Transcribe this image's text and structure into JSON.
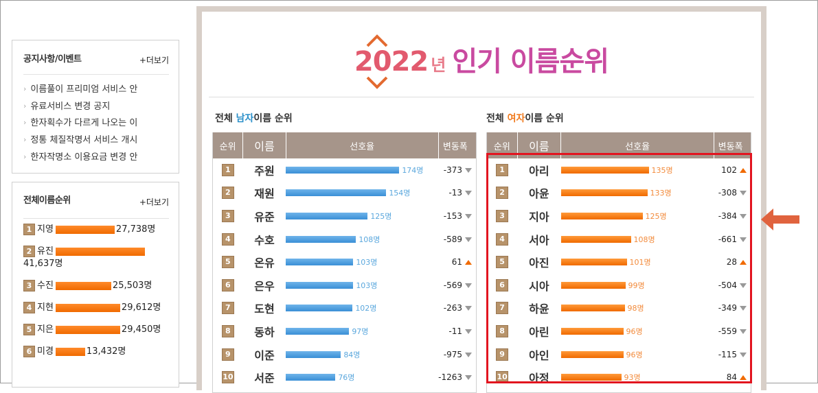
{
  "notice": {
    "title": "공지사항/이벤트",
    "more": "+더보기",
    "items": [
      "이름풀이 프리미엄 서비스 안",
      "유료서비스 변경 공지",
      "한자획수가 다르게 나오는 이",
      "정통 체질작명서 서비스 개시",
      "한자작명소 이용요금 변경 안"
    ]
  },
  "all_ranking": {
    "title": "전체이름순위",
    "more": "+더보기",
    "items": [
      {
        "rank": "1",
        "name": "지영",
        "count": "27,738명",
        "bar": 0.48
      },
      {
        "rank": "2",
        "name": "유진",
        "count": "41,637명",
        "bar": 0.72
      },
      {
        "rank": "3",
        "name": "수진",
        "count": "25,503명",
        "bar": 0.45
      },
      {
        "rank": "4",
        "name": "지현",
        "count": "29,612명",
        "bar": 0.52
      },
      {
        "rank": "5",
        "name": "지은",
        "count": "29,450명",
        "bar": 0.52
      },
      {
        "rank": "6",
        "name": "미경",
        "count": "13,432명",
        "bar": 0.24
      }
    ]
  },
  "main": {
    "title_year": "2022",
    "title_nyeon": "년",
    "title_rest": "인기 이름순위"
  },
  "male": {
    "title_prefix": "전체 ",
    "title_hl": "남자",
    "title_suffix": "이름 순위",
    "headers": [
      "순위",
      "이름",
      "선호율",
      "변동폭"
    ],
    "rows": [
      {
        "rank": "1",
        "name": "주원",
        "count": "174명",
        "value": 174,
        "change": "-373",
        "dir": "down"
      },
      {
        "rank": "2",
        "name": "재원",
        "count": "154명",
        "value": 154,
        "change": "-13",
        "dir": "down"
      },
      {
        "rank": "3",
        "name": "유준",
        "count": "125명",
        "value": 125,
        "change": "-153",
        "dir": "down"
      },
      {
        "rank": "4",
        "name": "수호",
        "count": "108명",
        "value": 108,
        "change": "-589",
        "dir": "down"
      },
      {
        "rank": "5",
        "name": "온유",
        "count": "103명",
        "value": 103,
        "change": "61",
        "dir": "up"
      },
      {
        "rank": "6",
        "name": "은우",
        "count": "103명",
        "value": 103,
        "change": "-569",
        "dir": "down"
      },
      {
        "rank": "7",
        "name": "도현",
        "count": "102명",
        "value": 102,
        "change": "-263",
        "dir": "down"
      },
      {
        "rank": "8",
        "name": "동하",
        "count": "97명",
        "value": 97,
        "change": "-11",
        "dir": "down"
      },
      {
        "rank": "9",
        "name": "이준",
        "count": "84명",
        "value": 84,
        "change": "-975",
        "dir": "down"
      },
      {
        "rank": "10",
        "name": "서준",
        "count": "76명",
        "value": 76,
        "change": "-1263",
        "dir": "down"
      }
    ]
  },
  "female": {
    "title_prefix": "전체 ",
    "title_hl": "여자",
    "title_suffix": "이름 순위",
    "headers": [
      "순위",
      "이름",
      "선호율",
      "변동폭"
    ],
    "rows": [
      {
        "rank": "1",
        "name": "아리",
        "count": "135명",
        "value": 135,
        "change": "102",
        "dir": "up"
      },
      {
        "rank": "2",
        "name": "아윤",
        "count": "133명",
        "value": 133,
        "change": "-308",
        "dir": "down"
      },
      {
        "rank": "3",
        "name": "지아",
        "count": "125명",
        "value": 125,
        "change": "-384",
        "dir": "down"
      },
      {
        "rank": "4",
        "name": "서아",
        "count": "108명",
        "value": 108,
        "change": "-661",
        "dir": "down"
      },
      {
        "rank": "5",
        "name": "아진",
        "count": "101명",
        "value": 101,
        "change": "28",
        "dir": "up"
      },
      {
        "rank": "6",
        "name": "시아",
        "count": "99명",
        "value": 99,
        "change": "-504",
        "dir": "down"
      },
      {
        "rank": "7",
        "name": "하윤",
        "count": "98명",
        "value": 98,
        "change": "-349",
        "dir": "down"
      },
      {
        "rank": "8",
        "name": "아린",
        "count": "96명",
        "value": 96,
        "change": "-559",
        "dir": "down"
      },
      {
        "rank": "9",
        "name": "아인",
        "count": "96명",
        "value": 96,
        "change": "-115",
        "dir": "down"
      },
      {
        "rank": "10",
        "name": "아정",
        "count": "93명",
        "value": 93,
        "change": "84",
        "dir": "up"
      }
    ]
  },
  "colors": {
    "accent_orange": "#f06a00",
    "accent_blue": "#3a8fd6",
    "highlight_red": "#e2141f",
    "header_brown": "#a6958a"
  }
}
